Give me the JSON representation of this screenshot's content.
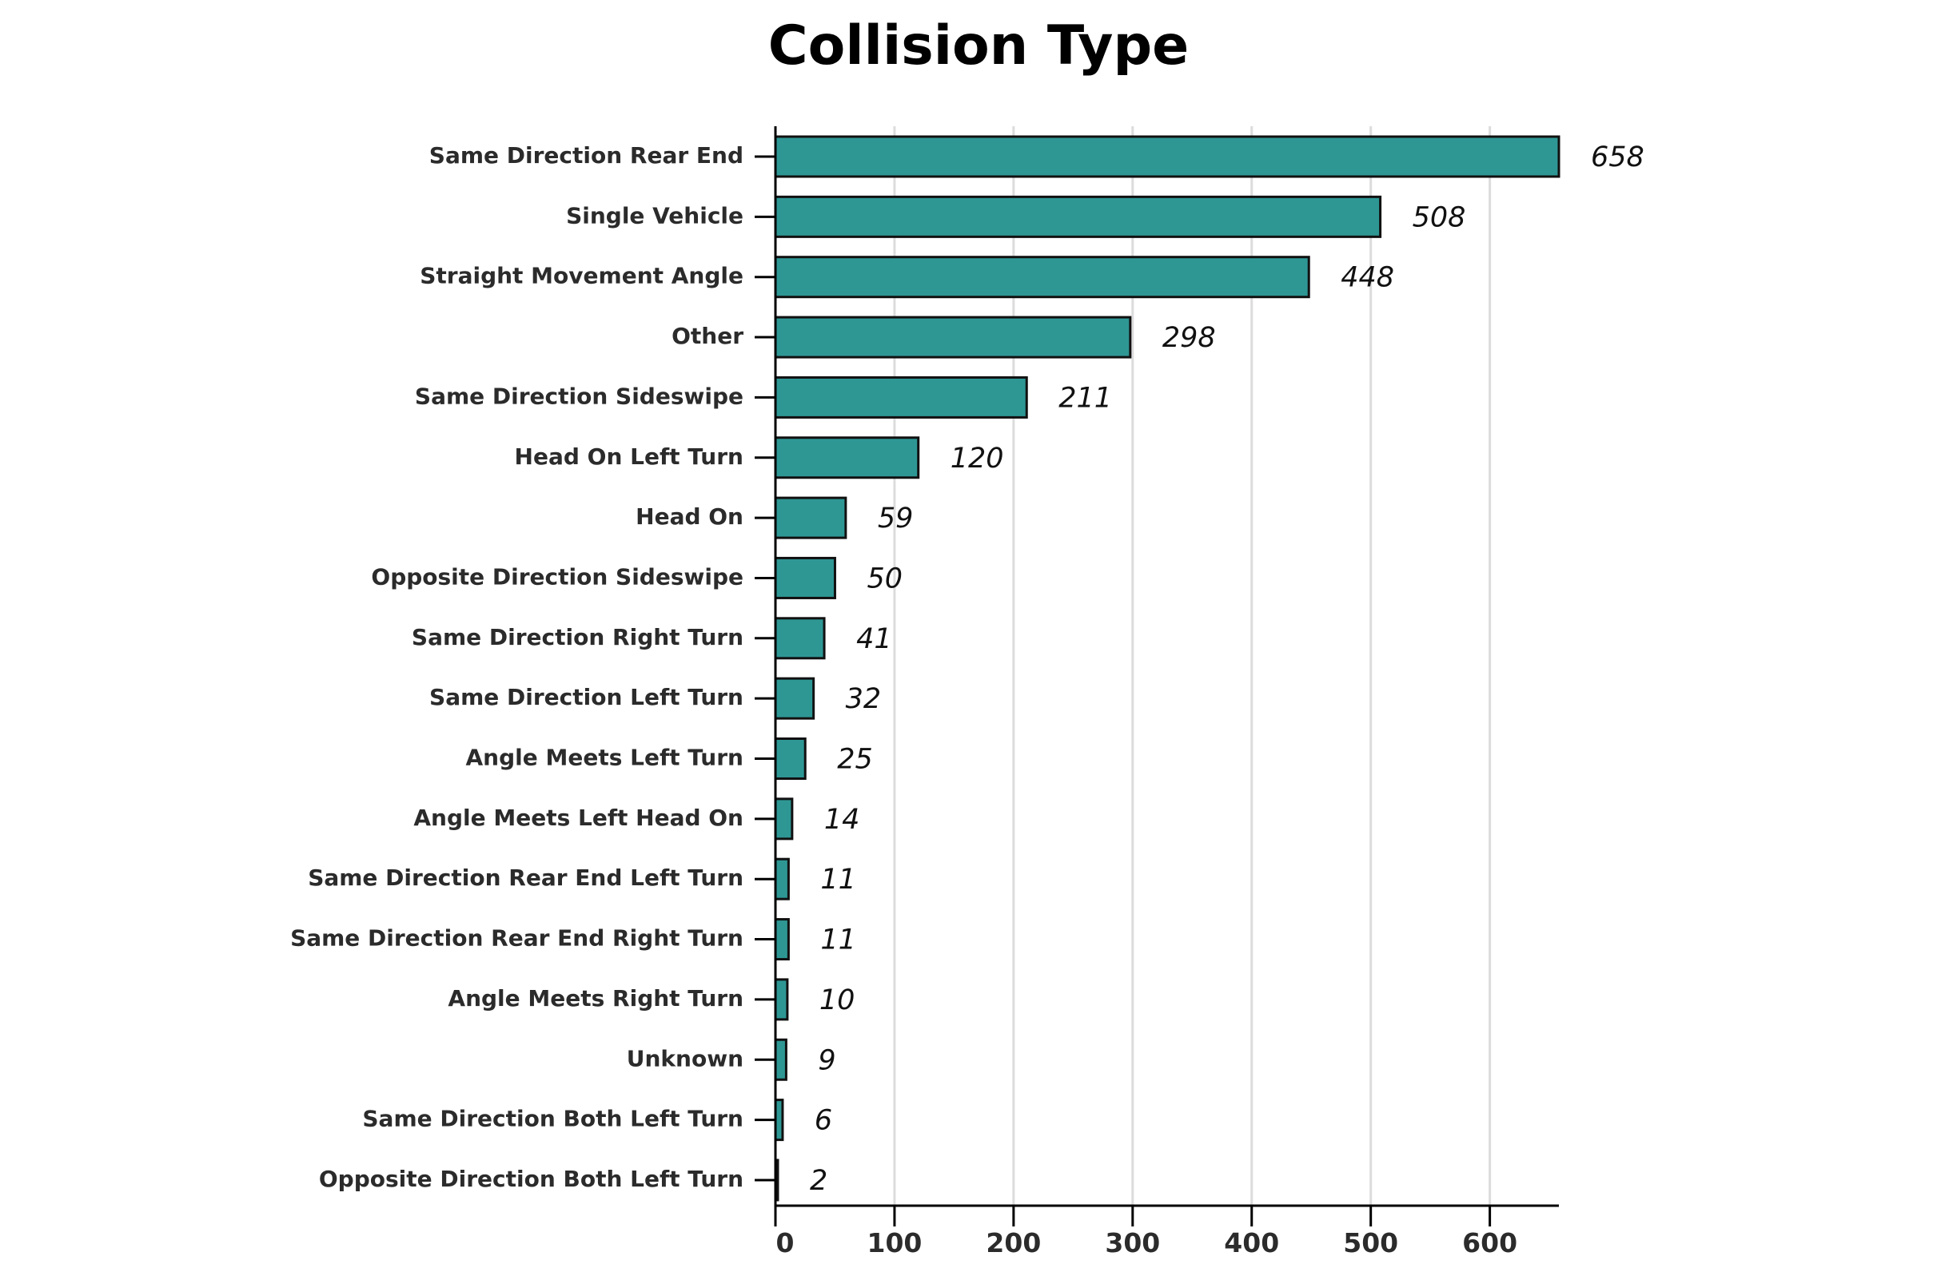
{
  "chart_data": {
    "type": "bar",
    "orientation": "horizontal",
    "title": "Collision Type",
    "xlabel": "",
    "ylabel": "",
    "categories": [
      "Same Direction Rear End",
      "Single Vehicle",
      "Straight Movement Angle",
      "Other",
      "Same Direction Sideswipe",
      "Head On Left Turn",
      "Head On",
      "Opposite Direction Sideswipe",
      "Same Direction Right Turn",
      "Same Direction Left Turn",
      "Angle Meets Left Turn",
      "Angle Meets Left Head On",
      "Same Direction Rear End Left Turn",
      "Same Direction Rear End Right Turn",
      "Angle Meets Right Turn",
      "Unknown",
      "Same Direction Both Left Turn",
      "Opposite Direction Both Left Turn"
    ],
    "values": [
      658,
      508,
      448,
      298,
      211,
      120,
      59,
      50,
      41,
      32,
      25,
      14,
      11,
      11,
      10,
      9,
      6,
      2
    ],
    "xlim": [
      0,
      658
    ],
    "xticks": [
      0,
      100,
      200,
      300,
      400,
      500,
      600
    ],
    "grid": "vertical",
    "bar_color": "#2e9794",
    "bar_edge_color": "#111111",
    "grid_color": "#dcdcdc",
    "axis_color": "#000000",
    "data_labels": true
  }
}
